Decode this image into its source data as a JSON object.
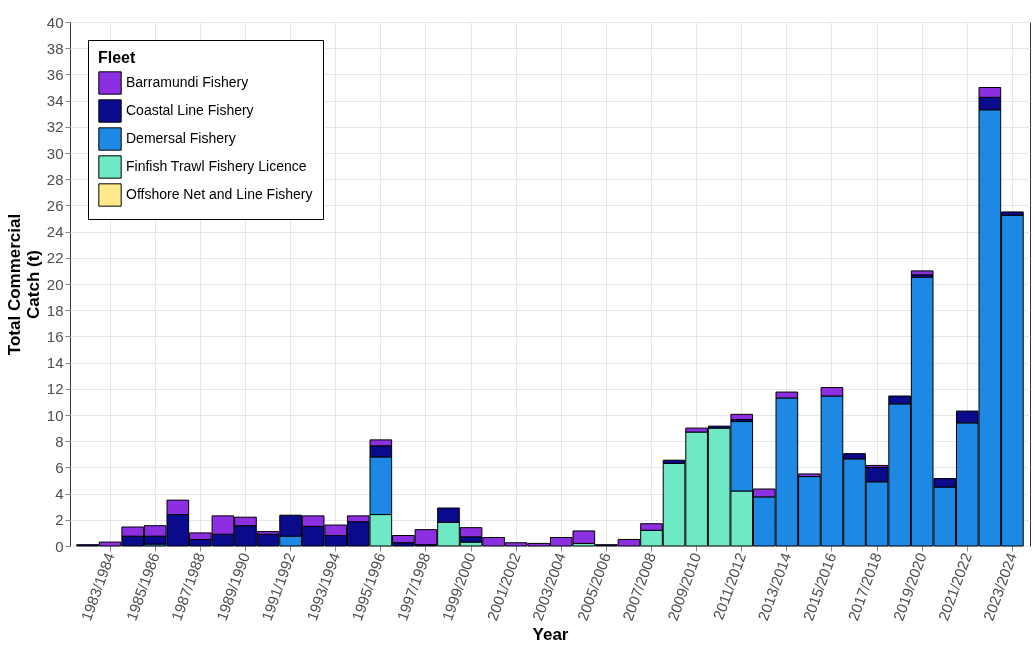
{
  "chart_data": {
    "type": "bar",
    "stacked": true,
    "xlabel": "Year",
    "ylabel": "Total Commercial\nCatch (t)",
    "legend_title": "Fleet",
    "legend": "top left",
    "grid": true,
    "categories": [
      null,
      "1983/1984",
      null,
      "1985/1986",
      null,
      "1987/1988",
      null,
      "1989/1990",
      null,
      "1991/1992",
      null,
      "1993/1994",
      null,
      "1995/1996",
      null,
      "1997/1998",
      null,
      "1999/2000",
      null,
      "2001/2002",
      null,
      "2003/2004",
      null,
      "2005/2006",
      null,
      "2007/2008",
      null,
      "2009/2010",
      null,
      "2011/2012",
      null,
      "2013/2014",
      null,
      "2015/2016",
      null,
      "2017/2018",
      null,
      "2019/2020",
      null,
      "2021/2022",
      null,
      "2023/2024"
    ],
    "ylim": [
      0,
      40
    ],
    "yticks": [
      0,
      2,
      4,
      6,
      8,
      10,
      12,
      14,
      16,
      18,
      20,
      22,
      24,
      26,
      28,
      30,
      32,
      34,
      36,
      38,
      40
    ],
    "series": [
      {
        "name": "Offshore Net and Line Fishery",
        "color": "#ffe98a",
        "values": [
          null,
          null,
          null,
          null,
          null,
          null,
          null,
          null,
          null,
          null,
          null,
          null,
          null,
          null,
          null,
          null,
          null,
          null,
          null,
          null,
          null,
          null,
          null,
          null,
          null,
          null,
          null,
          null,
          null,
          null,
          null,
          null,
          null,
          null,
          null,
          null,
          null,
          null,
          null,
          null,
          null,
          null
        ]
      },
      {
        "name": "Finfish Trawl Fishery Licence",
        "color": "#6ee8c5",
        "values": [
          null,
          null,
          null,
          null,
          null,
          null,
          null,
          null,
          null,
          null,
          null,
          null,
          null,
          2.4,
          null,
          null,
          1.8,
          0.3,
          null,
          null,
          null,
          null,
          0.2,
          null,
          null,
          1.2,
          6.3,
          8.7,
          9.0,
          4.2,
          null,
          null,
          null,
          null,
          null,
          null,
          null,
          null,
          null,
          null,
          null,
          null
        ]
      },
      {
        "name": "Demersal Fishery",
        "color": "#1e88e5",
        "values": [
          null,
          null,
          null,
          0.15,
          null,
          null,
          null,
          null,
          null,
          0.75,
          null,
          null,
          null,
          4.4,
          null,
          null,
          null,
          null,
          null,
          null,
          null,
          null,
          null,
          null,
          null,
          null,
          null,
          null,
          null,
          5.3,
          3.75,
          11.3,
          5.3,
          11.45,
          6.65,
          4.9,
          10.85,
          20.5,
          4.5,
          9.4,
          33.3,
          25.25
        ]
      },
      {
        "name": "Coastal Line Fishery",
        "color": "#0a0a8c",
        "values": [
          0.1,
          null,
          0.75,
          0.6,
          2.4,
          0.5,
          0.9,
          1.55,
          0.9,
          1.6,
          1.5,
          0.8,
          1.85,
          0.85,
          0.25,
          0.1,
          1.1,
          0.4,
          null,
          null,
          null,
          null,
          null,
          0.1,
          null,
          null,
          0.25,
          null,
          0.15,
          0.15,
          null,
          null,
          null,
          null,
          0.4,
          1.1,
          0.6,
          0.2,
          0.65,
          0.9,
          0.95,
          0.25
        ]
      },
      {
        "name": "Barramundi Fishery",
        "color": "#8b2fe0",
        "values": [
          null,
          0.3,
          0.7,
          0.8,
          1.1,
          0.5,
          1.4,
          0.65,
          0.2,
          null,
          0.8,
          0.8,
          0.45,
          0.45,
          0.55,
          1.15,
          null,
          0.7,
          0.65,
          0.25,
          0.2,
          0.65,
          0.95,
          null,
          0.5,
          0.5,
          null,
          0.3,
          null,
          0.4,
          0.6,
          0.45,
          0.2,
          0.65,
          null,
          0.15,
          null,
          0.3,
          null,
          null,
          0.75,
          null
        ]
      }
    ]
  }
}
